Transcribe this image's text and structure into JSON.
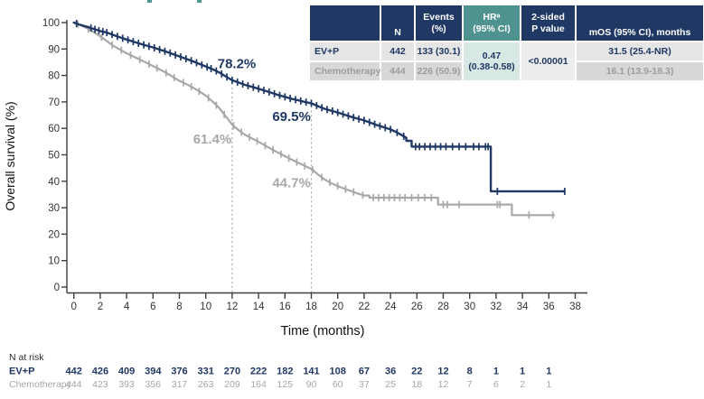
{
  "stats_table": {
    "headers": {
      "label": "",
      "n": "N",
      "events": "Events\n(%)",
      "hr": "HRᵃ\n(95% CI)",
      "p": "2-sided\nP value",
      "mos": "mOS (95% CI), months"
    },
    "rows": [
      {
        "label": "EV+P",
        "n": "442",
        "events": "133 (30.1)",
        "mos": "31.5 (25.4-NR)"
      },
      {
        "label": "Chemotherapy",
        "n": "444",
        "events": "226 (50.9)",
        "mos": "16.1 (13.9-18.3)"
      }
    ],
    "hr_value": "0.47\n(0.38-0.58)",
    "p_value": "<0.00001",
    "colors": {
      "header_navy": "#1F3864",
      "header_teal": "#4E938F",
      "hr_cell": "#D8E8E5"
    }
  },
  "chart_data": {
    "type": "line",
    "subtype": "kaplan-meier",
    "xlabel": "Time (months)",
    "ylabel": "Overall survival (%)",
    "xlim": [
      0,
      38
    ],
    "ylim": [
      0,
      100
    ],
    "xticks": [
      0,
      2,
      4,
      6,
      8,
      10,
      12,
      14,
      16,
      18,
      20,
      22,
      24,
      26,
      28,
      30,
      32,
      34,
      36,
      38
    ],
    "yticks": [
      0,
      10,
      20,
      30,
      40,
      50,
      60,
      70,
      80,
      90,
      100
    ],
    "grid": false,
    "series": [
      {
        "name": "EV+P",
        "color": "#1F3864",
        "width": 2.4,
        "points": [
          [
            0,
            100
          ],
          [
            0.4,
            99.3
          ],
          [
            1,
            98.4
          ],
          [
            1.5,
            97.6
          ],
          [
            2,
            96.8
          ],
          [
            2.5,
            96.2
          ],
          [
            3,
            95.3
          ],
          [
            3.5,
            94.4
          ],
          [
            4,
            93.6
          ],
          [
            4.5,
            92.8
          ],
          [
            5,
            92.0
          ],
          [
            5.5,
            91.3
          ],
          [
            6,
            90.6
          ],
          [
            6.5,
            89.8
          ],
          [
            7,
            89.0
          ],
          [
            7.5,
            88.1
          ],
          [
            8,
            87.2
          ],
          [
            8.5,
            86.3
          ],
          [
            9,
            85.4
          ],
          [
            9.5,
            84.4
          ],
          [
            10,
            83.4
          ],
          [
            10.5,
            82.4
          ],
          [
            11,
            81.2
          ],
          [
            11.5,
            79.7
          ],
          [
            12,
            78.2
          ],
          [
            12.5,
            77.3
          ],
          [
            13,
            76.4
          ],
          [
            13.5,
            75.7
          ],
          [
            14,
            75.0
          ],
          [
            14.5,
            74.2
          ],
          [
            15,
            73.4
          ],
          [
            15.5,
            72.6
          ],
          [
            16,
            71.9
          ],
          [
            16.5,
            71.2
          ],
          [
            17,
            70.6
          ],
          [
            17.5,
            70.0
          ],
          [
            18,
            69.5
          ],
          [
            18.5,
            68.4
          ],
          [
            19,
            67.4
          ],
          [
            19.5,
            66.7
          ],
          [
            20,
            66.0
          ],
          [
            20.5,
            65.2
          ],
          [
            21,
            64.4
          ],
          [
            21.5,
            63.7
          ],
          [
            22,
            63.0
          ],
          [
            22.5,
            62.1
          ],
          [
            23,
            61.2
          ],
          [
            23.5,
            60.4
          ],
          [
            24,
            59.6
          ],
          [
            24.4,
            58.7
          ],
          [
            24.8,
            57.6
          ],
          [
            25.2,
            56.4
          ],
          [
            25.2,
            55.3
          ],
          [
            25.6,
            55.3
          ],
          [
            25.6,
            53.1
          ],
          [
            31.6,
            53.1
          ],
          [
            31.6,
            36.2
          ],
          [
            37.2,
            36.2
          ]
        ],
        "censor_marks": [
          0.2,
          1.3,
          1.6,
          1.9,
          2.2,
          2.5,
          2.9,
          3.3,
          3.7,
          4.1,
          4.5,
          4.9,
          5.3,
          5.7,
          6.1,
          6.5,
          6.9,
          7.3,
          7.7,
          8.1,
          8.5,
          8.9,
          9.3,
          9.7,
          10.1,
          10.4,
          10.8,
          11.2,
          11.6,
          12.0,
          12.4,
          12.8,
          13.2,
          13.6,
          14.0,
          14.4,
          14.8,
          15.2,
          15.6,
          16.0,
          16.4,
          16.8,
          17.2,
          17.6,
          18.0,
          18.4,
          18.8,
          19.2,
          19.6,
          20.0,
          20.4,
          20.8,
          21.2,
          21.6,
          22.0,
          22.4,
          22.8,
          23.2,
          23.6,
          24.0,
          24.5,
          25.0,
          25.9,
          26.2,
          26.6,
          27.0,
          27.4,
          27.8,
          28.2,
          28.7,
          29.2,
          29.7,
          30.3,
          30.7,
          31.2,
          31.4,
          32.1,
          37.2
        ]
      },
      {
        "name": "Chemotherapy",
        "color": "#A8A8A8",
        "width": 2.2,
        "points": [
          [
            0,
            100
          ],
          [
            0.5,
            99.0
          ],
          [
            1,
            97.8
          ],
          [
            1.5,
            96.4
          ],
          [
            2,
            94.8
          ],
          [
            2.5,
            93.0
          ],
          [
            3,
            91.2
          ],
          [
            3.5,
            89.8
          ],
          [
            4,
            88.4
          ],
          [
            4.5,
            87.2
          ],
          [
            5,
            86.0
          ],
          [
            5.5,
            84.8
          ],
          [
            6,
            83.6
          ],
          [
            6.5,
            82.3
          ],
          [
            7,
            81.0
          ],
          [
            7.5,
            79.5
          ],
          [
            8,
            78.0
          ],
          [
            8.5,
            76.8
          ],
          [
            9,
            75.5
          ],
          [
            9.5,
            74.0
          ],
          [
            10,
            72.4
          ],
          [
            10.5,
            70.2
          ],
          [
            11,
            67.8
          ],
          [
            11.5,
            64.6
          ],
          [
            12,
            61.4
          ],
          [
            12.5,
            59.3
          ],
          [
            13,
            57.5
          ],
          [
            13.5,
            56.2
          ],
          [
            14,
            54.9
          ],
          [
            14.5,
            53.5
          ],
          [
            15,
            52.1
          ],
          [
            15.5,
            50.8
          ],
          [
            16,
            49.5
          ],
          [
            16.5,
            48.2
          ],
          [
            17,
            47.0
          ],
          [
            17.5,
            45.8
          ],
          [
            18,
            44.7
          ],
          [
            18.5,
            42.6
          ],
          [
            19,
            40.7
          ],
          [
            19.5,
            39.3
          ],
          [
            20,
            38.2
          ],
          [
            20.5,
            37.2
          ],
          [
            21,
            36.3
          ],
          [
            21.5,
            35.4
          ],
          [
            22,
            34.6
          ],
          [
            22.4,
            34.6
          ],
          [
            22.4,
            33.8
          ],
          [
            27.6,
            33.8
          ],
          [
            27.6,
            31.2
          ],
          [
            33.2,
            31.2
          ],
          [
            33.2,
            27.2
          ],
          [
            36.4,
            27.2
          ]
        ],
        "censor_marks": [
          0.3,
          1.1,
          2.1,
          2.9,
          3.6,
          4.3,
          5.0,
          5.7,
          6.3,
          7.0,
          7.6,
          8.3,
          8.9,
          9.5,
          10.2,
          10.8,
          11.4,
          12.1,
          12.7,
          13.3,
          13.9,
          14.5,
          15.1,
          15.7,
          16.3,
          16.9,
          17.5,
          18.1,
          18.8,
          19.4,
          20.0,
          20.6,
          21.2,
          21.9,
          22.7,
          23.1,
          23.5,
          23.9,
          24.3,
          24.7,
          25.1,
          25.6,
          26.1,
          26.6,
          27.1,
          28.0,
          28.3,
          29.2,
          32.1,
          32.3,
          34.5,
          36.3
        ]
      }
    ],
    "reference_lines": [
      {
        "month": 12,
        "top_pct": 78.2
      },
      {
        "month": 18,
        "top_pct": 69.5
      }
    ],
    "annotations": [
      {
        "text": "78.2%",
        "month": 12.35,
        "pct": 84.5,
        "color": "#1F3864"
      },
      {
        "text": "61.4%",
        "month": 10.5,
        "pct": 56.0,
        "color": "#A8A8A8"
      },
      {
        "text": "69.5%",
        "month": 16.5,
        "pct": 64.5,
        "color": "#1F3864"
      },
      {
        "text": "44.7%",
        "month": 16.5,
        "pct": 39.5,
        "color": "#A8A8A8"
      }
    ],
    "risk_table": {
      "title": "N at risk",
      "timepoints": [
        0,
        2,
        4,
        6,
        8,
        10,
        12,
        14,
        16,
        18,
        20,
        22,
        24,
        26,
        28,
        30,
        32,
        34,
        36
      ],
      "rows": [
        {
          "name": "EV+P",
          "color": "#1F3864",
          "values": [
            442,
            426,
            409,
            394,
            376,
            331,
            270,
            222,
            182,
            141,
            108,
            67,
            36,
            22,
            12,
            8,
            1,
            1,
            1
          ]
        },
        {
          "name": "Chemotherapy",
          "color": "#A6A6A6",
          "values": [
            444,
            423,
            393,
            356,
            317,
            263,
            209,
            164,
            125,
            90,
            60,
            37,
            25,
            18,
            12,
            7,
            6,
            2,
            1
          ]
        }
      ]
    }
  }
}
